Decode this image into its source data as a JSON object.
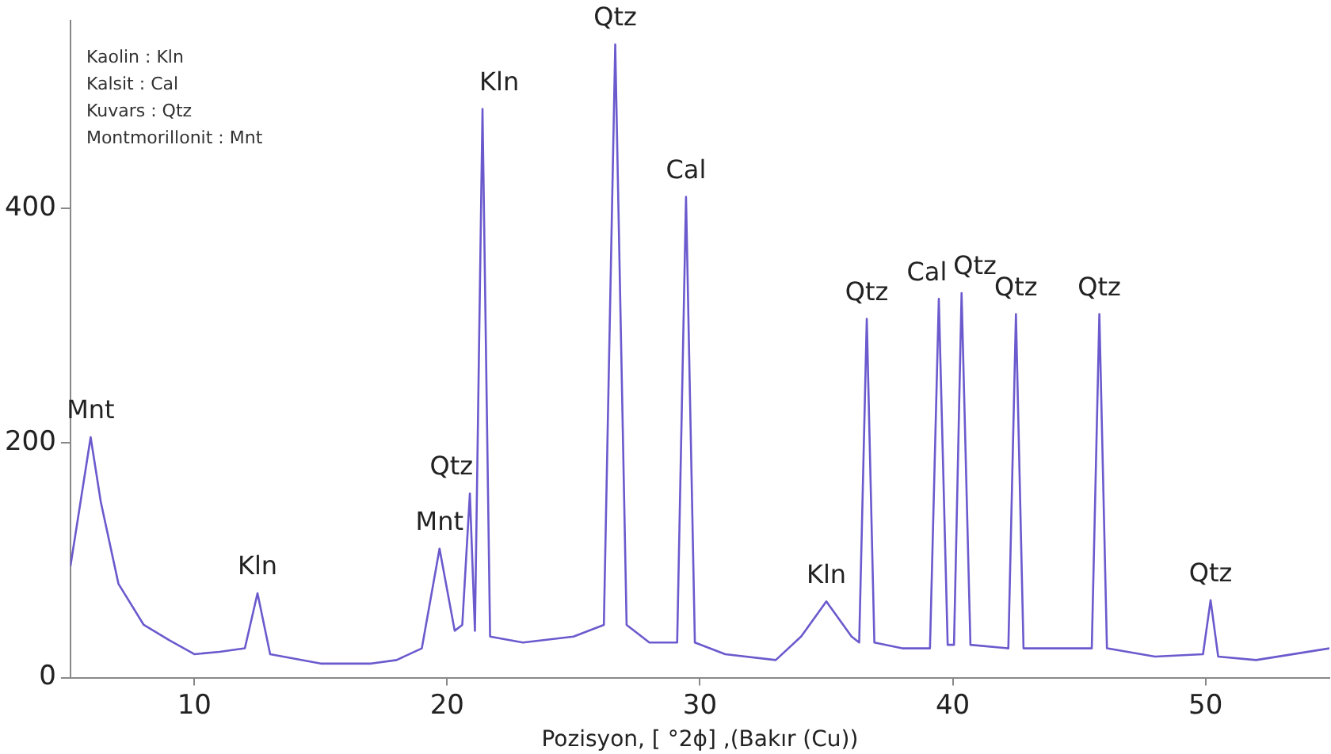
{
  "chart_data": {
    "type": "line",
    "xlabel": "Pozisyon, [ °2ϕ] ,(Bakır (Cu))",
    "xlim": [
      5.1,
      54.9
    ],
    "xticks": [
      10,
      20,
      30,
      40,
      50
    ],
    "ylim": [
      0,
      560
    ],
    "yticks": [
      0,
      200,
      400
    ],
    "grid": false,
    "legend": false,
    "marker": "none",
    "series": [
      {
        "color": "#6a5acd",
        "x": [
          5.1,
          5.5,
          5.9,
          6.3,
          7,
          8,
          9,
          10,
          11,
          12,
          12.5,
          13,
          15,
          17,
          18,
          19,
          19.7,
          20.3,
          20.6,
          20.9,
          21.1,
          21.4,
          21.7,
          23,
          25,
          26.2,
          26.65,
          27.1,
          28,
          29.1,
          29.45,
          29.8,
          31,
          33,
          34,
          35,
          36,
          36.3,
          36.6,
          36.9,
          38,
          39.1,
          39.45,
          39.8,
          40.05,
          40.35,
          40.7,
          42.2,
          42.5,
          42.8,
          45.5,
          45.8,
          46.1,
          48,
          49.9,
          50.2,
          50.5,
          52,
          54.9
        ],
        "values": [
          95,
          150,
          205,
          150,
          80,
          45,
          32,
          20,
          22,
          25,
          72,
          20,
          12,
          12,
          15,
          25,
          110,
          40,
          45,
          157,
          40,
          485,
          35,
          30,
          35,
          45,
          540,
          45,
          30,
          30,
          410,
          30,
          20,
          15,
          35,
          65,
          35,
          30,
          306,
          30,
          25,
          25,
          323,
          28,
          28,
          328,
          28,
          25,
          310,
          25,
          25,
          310,
          25,
          18,
          20,
          66,
          18,
          15,
          25
        ]
      }
    ],
    "annotations": [
      "Kaolin : Kln",
      "Kalsit : Cal",
      "Kuvars : Qtz",
      "Montmorillonit : Mnt",
      {
        "text": "Mnt",
        "x": 5.9,
        "y": 205
      },
      {
        "text": "Kln",
        "x": 12.5,
        "y": 72
      },
      {
        "text": "Mnt",
        "x": 19.7,
        "y": 110
      },
      {
        "text": "Qtz",
        "x": 20.9,
        "y": 157
      },
      {
        "text": "Kln",
        "x": 21.4,
        "y": 485
      },
      {
        "text": "Qtz",
        "x": 26.65,
        "y": 540
      },
      {
        "text": "Cal",
        "x": 29.45,
        "y": 410
      },
      {
        "text": "Kln",
        "x": 35,
        "y": 65
      },
      {
        "text": "Qtz",
        "x": 36.6,
        "y": 306
      },
      {
        "text": "Cal",
        "x": 39.45,
        "y": 323
      },
      {
        "text": "Qtz",
        "x": 40.35,
        "y": 328
      },
      {
        "text": "Qtz",
        "x": 42.5,
        "y": 310
      },
      {
        "text": "Qtz",
        "x": 45.8,
        "y": 310
      },
      {
        "text": "Qtz",
        "x": 50.2,
        "y": 66
      }
    ]
  }
}
